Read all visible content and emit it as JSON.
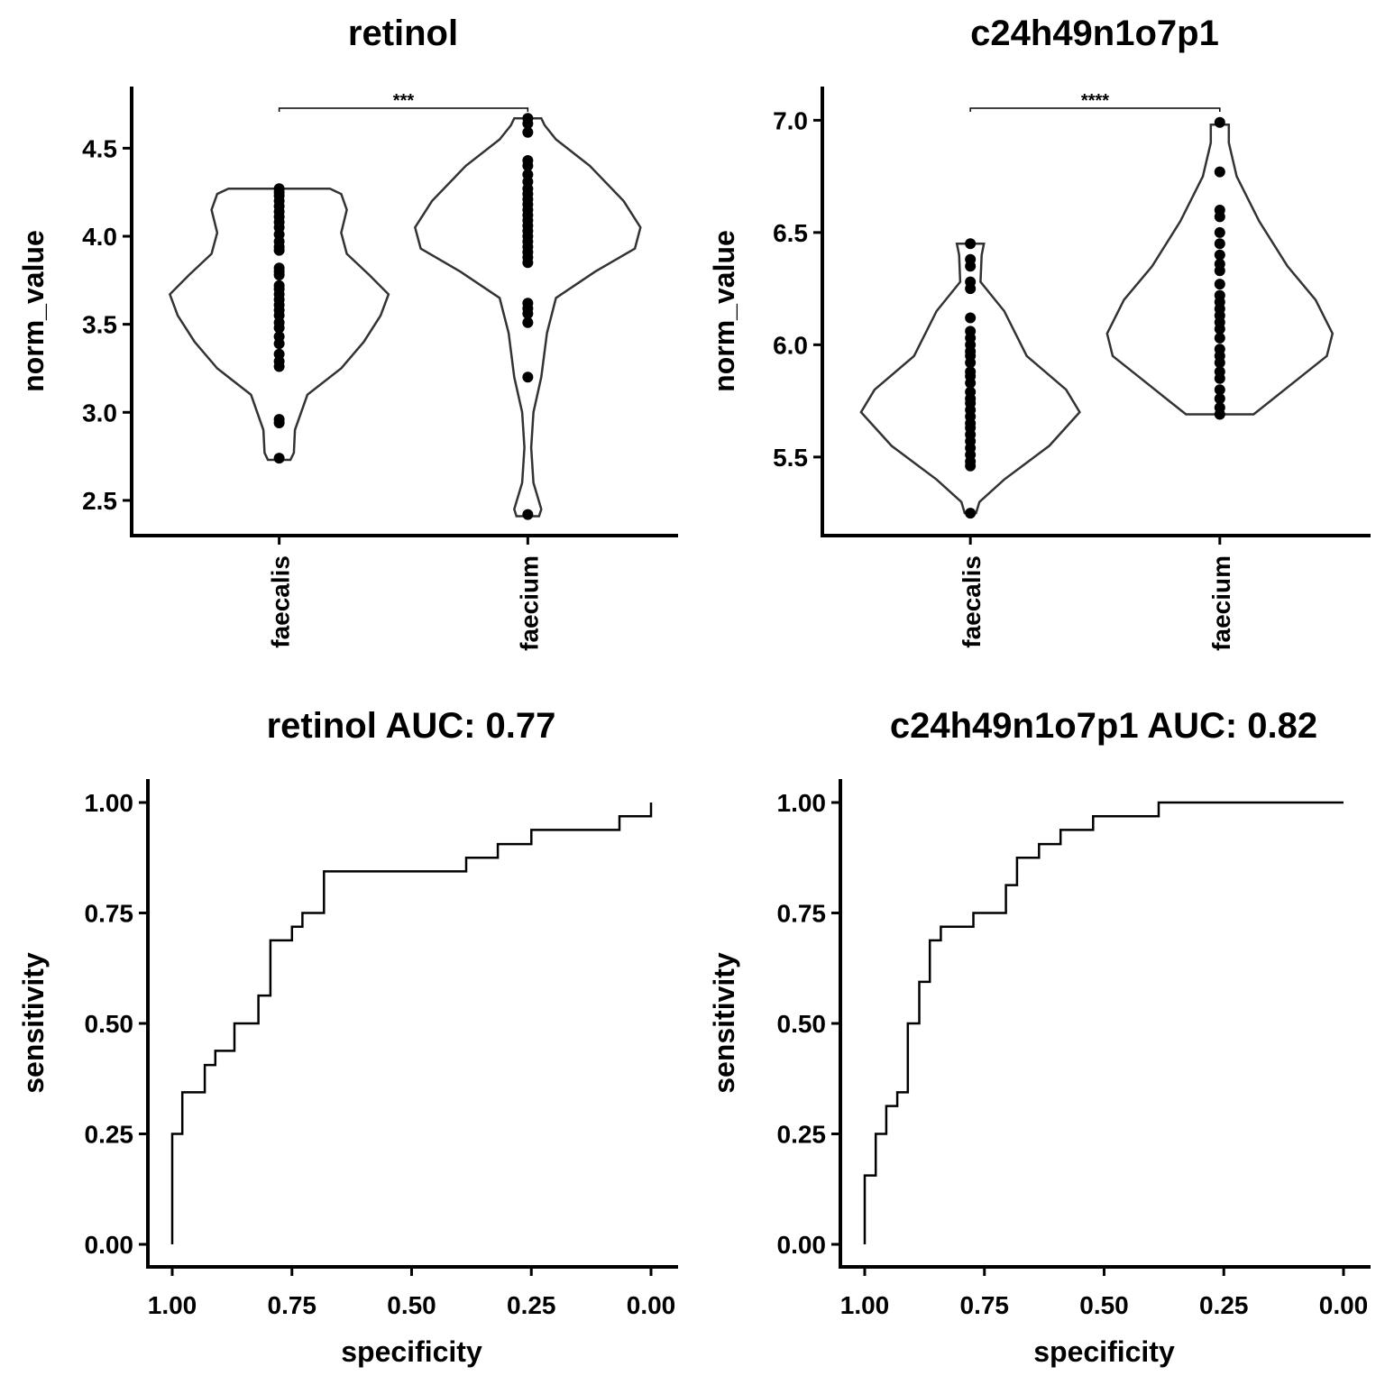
{
  "chart_data": [
    {
      "type": "violin",
      "title": "retinol",
      "ylabel": "norm_value",
      "xlabel": "",
      "categories": [
        "faecalis",
        "faecium"
      ],
      "yticks": [
        "2.5",
        "3.0",
        "3.5",
        "4.0",
        "4.5"
      ],
      "ylim": [
        2.3,
        4.85
      ],
      "significance": "***",
      "groups": [
        {
          "name": "faecalis",
          "points": [
            4.27,
            4.25,
            4.23,
            4.2,
            4.17,
            4.14,
            4.11,
            4.08,
            4.05,
            4.01,
            3.97,
            3.94,
            3.92,
            3.82,
            3.8,
            3.78,
            3.72,
            3.7,
            3.67,
            3.64,
            3.61,
            3.58,
            3.55,
            3.51,
            3.48,
            3.43,
            3.39,
            3.33,
            3.29,
            3.26,
            2.96,
            2.94,
            2.74
          ],
          "violin": [
            [
              2.73,
              0.1
            ],
            [
              2.77,
              0.13
            ],
            [
              2.9,
              0.14
            ],
            [
              3.1,
              0.25
            ],
            [
              3.25,
              0.55
            ],
            [
              3.4,
              0.75
            ],
            [
              3.55,
              0.9
            ],
            [
              3.67,
              0.97
            ],
            [
              3.78,
              0.8
            ],
            [
              3.9,
              0.6
            ],
            [
              4.02,
              0.55
            ],
            [
              4.15,
              0.6
            ],
            [
              4.24,
              0.55
            ],
            [
              4.27,
              0.45
            ]
          ]
        },
        {
          "name": "faecium",
          "points": [
            4.67,
            4.64,
            4.59,
            4.43,
            4.4,
            4.35,
            4.31,
            4.27,
            4.24,
            4.21,
            4.18,
            4.15,
            4.12,
            4.09,
            4.06,
            4.03,
            4.0,
            3.97,
            3.94,
            3.91,
            3.88,
            3.85,
            3.62,
            3.59,
            3.56,
            3.51,
            3.2,
            2.42
          ],
          "violin": [
            [
              2.41,
              0.1
            ],
            [
              2.45,
              0.12
            ],
            [
              2.6,
              0.05
            ],
            [
              2.8,
              0.03
            ],
            [
              3.0,
              0.05
            ],
            [
              3.2,
              0.12
            ],
            [
              3.45,
              0.17
            ],
            [
              3.65,
              0.25
            ],
            [
              3.8,
              0.6
            ],
            [
              3.93,
              0.95
            ],
            [
              4.05,
              1.0
            ],
            [
              4.2,
              0.85
            ],
            [
              4.4,
              0.55
            ],
            [
              4.55,
              0.25
            ],
            [
              4.63,
              0.15
            ],
            [
              4.67,
              0.12
            ]
          ]
        }
      ]
    },
    {
      "type": "violin",
      "title": "c24h49n1o7p1",
      "ylabel": "norm_value",
      "xlabel": "",
      "categories": [
        "faecalis",
        "faecium"
      ],
      "yticks": [
        "5.5",
        "6.0",
        "6.5",
        "7.0"
      ],
      "ylim": [
        5.15,
        7.15
      ],
      "significance": "****",
      "groups": [
        {
          "name": "faecalis",
          "points": [
            6.45,
            6.38,
            6.35,
            6.28,
            6.25,
            6.12,
            6.06,
            6.03,
            6.0,
            5.97,
            5.95,
            5.92,
            5.88,
            5.86,
            5.83,
            5.79,
            5.76,
            5.74,
            5.71,
            5.68,
            5.65,
            5.63,
            5.6,
            5.57,
            5.54,
            5.51,
            5.48,
            5.46,
            5.25
          ],
          "violin": [
            [
              5.25,
              0.05
            ],
            [
              5.3,
              0.08
            ],
            [
              5.4,
              0.3
            ],
            [
              5.55,
              0.7
            ],
            [
              5.7,
              0.97
            ],
            [
              5.8,
              0.85
            ],
            [
              5.95,
              0.5
            ],
            [
              6.05,
              0.4
            ],
            [
              6.15,
              0.3
            ],
            [
              6.28,
              0.09
            ],
            [
              6.4,
              0.1
            ],
            [
              6.45,
              0.12
            ]
          ]
        },
        {
          "name": "faecium",
          "points": [
            6.99,
            6.77,
            6.6,
            6.57,
            6.5,
            6.45,
            6.4,
            6.36,
            6.33,
            6.27,
            6.22,
            6.19,
            6.16,
            6.13,
            6.1,
            6.07,
            6.03,
            5.98,
            5.95,
            5.92,
            5.88,
            5.85,
            5.8,
            5.76,
            5.72,
            5.69
          ],
          "violin": [
            [
              5.69,
              0.3
            ],
            [
              5.75,
              0.45
            ],
            [
              5.85,
              0.7
            ],
            [
              5.95,
              0.95
            ],
            [
              6.05,
              1.0
            ],
            [
              6.2,
              0.85
            ],
            [
              6.35,
              0.6
            ],
            [
              6.55,
              0.35
            ],
            [
              6.75,
              0.15
            ],
            [
              6.9,
              0.08
            ],
            [
              6.98,
              0.08
            ]
          ]
        }
      ]
    },
    {
      "type": "line",
      "subtype": "roc",
      "title": "retinol AUC: 0.77",
      "xlabel": "specificity",
      "ylabel": "sensitivity",
      "xlim": [
        1.0,
        0.0
      ],
      "ylim": [
        0.0,
        1.0
      ],
      "xticks": [
        "1.00",
        "0.75",
        "0.50",
        "0.25",
        "0.00"
      ],
      "yticks": [
        "0.00",
        "0.25",
        "0.50",
        "0.75",
        "1.00"
      ],
      "auc": 0.77,
      "x": [
        1.0,
        1.0,
        0.979,
        0.979,
        0.932,
        0.932,
        0.91,
        0.91,
        0.87,
        0.87,
        0.82,
        0.82,
        0.795,
        0.795,
        0.75,
        0.75,
        0.728,
        0.728,
        0.683,
        0.683,
        0.386,
        0.386,
        0.32,
        0.32,
        0.25,
        0.25,
        0.066,
        0.066,
        0.0,
        0.0
      ],
      "y": [
        0.0,
        0.25,
        0.25,
        0.344,
        0.344,
        0.406,
        0.406,
        0.438,
        0.438,
        0.5,
        0.5,
        0.563,
        0.563,
        0.688,
        0.688,
        0.719,
        0.719,
        0.75,
        0.75,
        0.844,
        0.844,
        0.875,
        0.875,
        0.906,
        0.906,
        0.938,
        0.938,
        0.969,
        0.969,
        1.0
      ]
    },
    {
      "type": "line",
      "subtype": "roc",
      "title": "c24h49n1o7p1 AUC: 0.82",
      "xlabel": "specificity",
      "ylabel": "sensitivity",
      "xlim": [
        1.0,
        0.0
      ],
      "ylim": [
        0.0,
        1.0
      ],
      "xticks": [
        "1.00",
        "0.75",
        "0.50",
        "0.25",
        "0.00"
      ],
      "yticks": [
        "0.00",
        "0.25",
        "0.50",
        "0.75",
        "1.00"
      ],
      "auc": 0.82,
      "x": [
        1.0,
        1.0,
        0.977,
        0.977,
        0.955,
        0.955,
        0.932,
        0.932,
        0.91,
        0.91,
        0.886,
        0.886,
        0.864,
        0.864,
        0.841,
        0.841,
        0.773,
        0.773,
        0.705,
        0.705,
        0.682,
        0.682,
        0.636,
        0.636,
        0.591,
        0.591,
        0.523,
        0.523,
        0.386,
        0.386,
        0.318,
        0.318,
        0.0
      ],
      "y": [
        0.0,
        0.156,
        0.156,
        0.25,
        0.25,
        0.313,
        0.313,
        0.344,
        0.344,
        0.5,
        0.5,
        0.594,
        0.594,
        0.688,
        0.688,
        0.719,
        0.719,
        0.75,
        0.75,
        0.813,
        0.813,
        0.875,
        0.875,
        0.906,
        0.906,
        0.938,
        0.938,
        0.969,
        0.969,
        1.0,
        1.0,
        1.0,
        1.0
      ]
    }
  ]
}
